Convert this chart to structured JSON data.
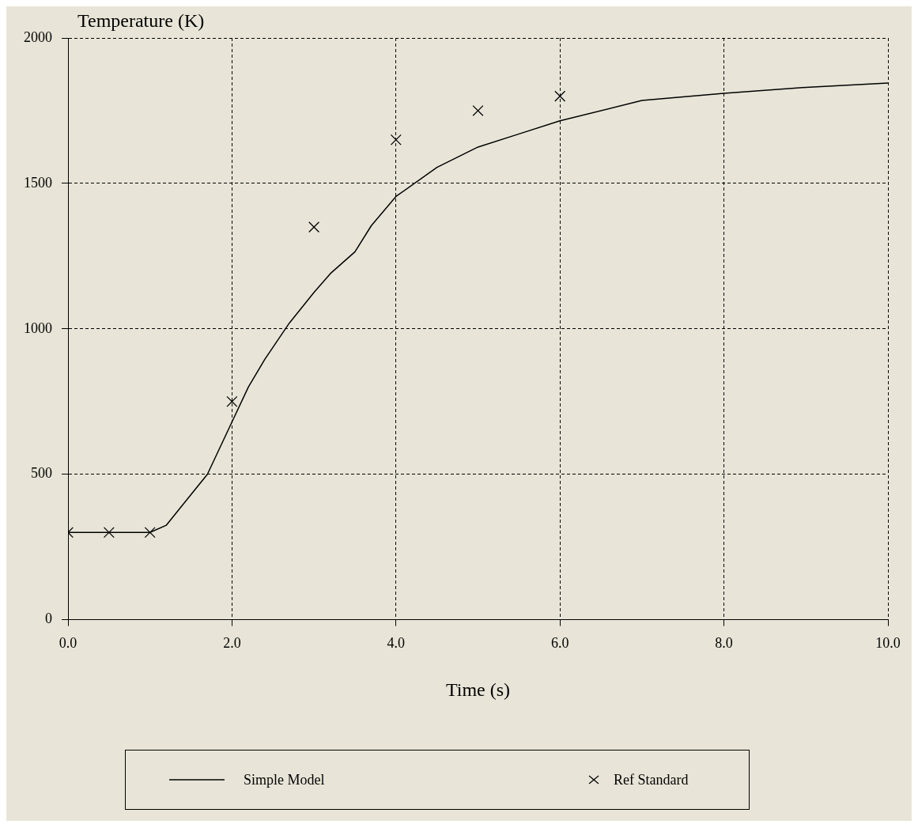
{
  "chart_data": {
    "type": "line",
    "xlabel": "Time (s)",
    "ylabel": "Temperature (K)",
    "xlim": [
      0,
      10
    ],
    "xticks": [
      {
        "value": 0,
        "label": "0.0"
      },
      {
        "value": 2,
        "label": "2.0"
      },
      {
        "value": 4,
        "label": "4.0"
      },
      {
        "value": 6,
        "label": "6.0"
      },
      {
        "value": 8,
        "label": "8.0"
      },
      {
        "value": 10,
        "label": "10.0"
      }
    ],
    "ylim": [
      0,
      2000
    ],
    "yticks": [
      0,
      500,
      1000,
      1500,
      2000
    ],
    "grid": true,
    "legend": "bottom",
    "series": [
      {
        "name": "Simple Model",
        "color": "#000000",
        "marker": "none",
        "line_style": "solid",
        "x": [
          0,
          0.5,
          1,
          1.2,
          1.4,
          1.7,
          2,
          2.2,
          2.4,
          2.7,
          3,
          3.2,
          3.5,
          3.7,
          4,
          4.5,
          5,
          5.5,
          6,
          7,
          8,
          9,
          10
        ],
        "values": [
          300,
          300,
          300,
          325,
          395,
          500,
          680,
          800,
          895,
          1020,
          1125,
          1190,
          1265,
          1355,
          1455,
          1555,
          1625,
          1670,
          1715,
          1785,
          1810,
          1830,
          1845
        ]
      },
      {
        "name": "Ref Standard",
        "type": "scatter",
        "color": "#000000",
        "marker": "cross",
        "x": [
          0,
          0.5,
          1,
          2,
          3,
          4,
          5,
          6
        ],
        "values": [
          300,
          300,
          300,
          750,
          1350,
          1650,
          1750,
          1800
        ]
      }
    ]
  }
}
